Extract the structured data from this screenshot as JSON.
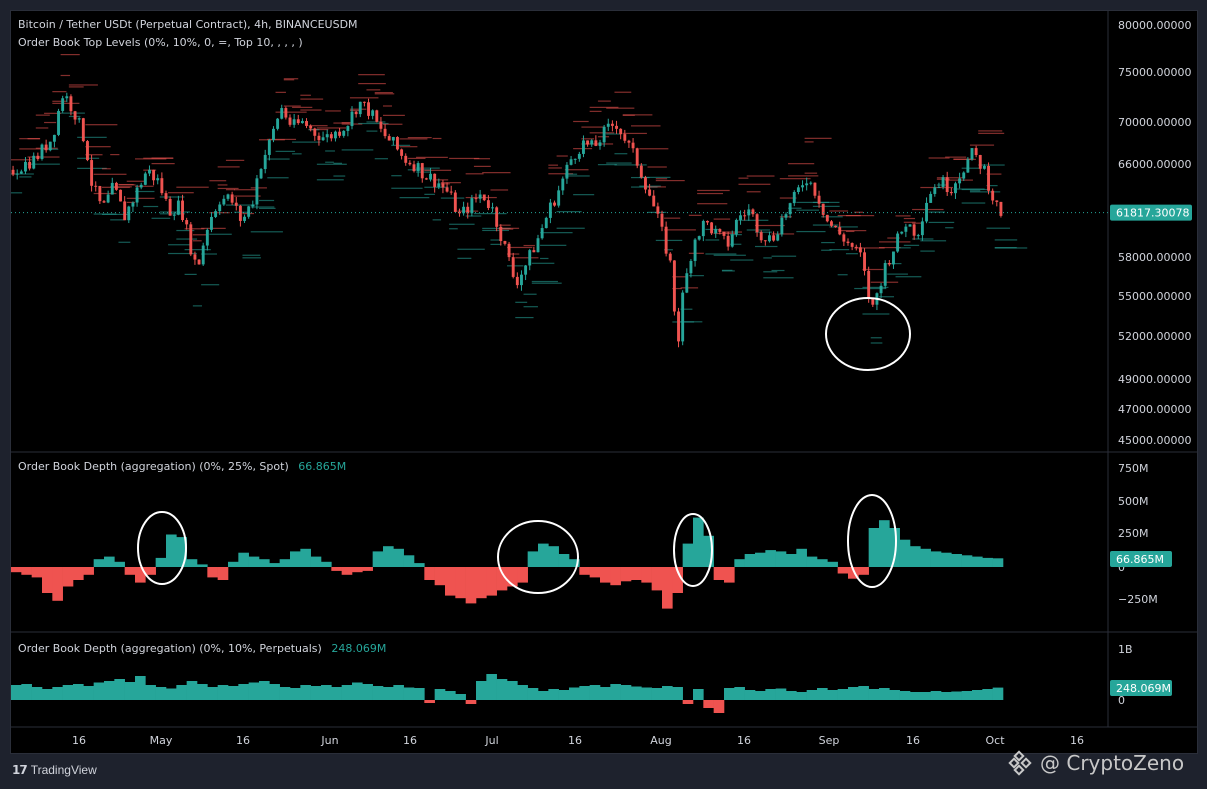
{
  "chart_data": [
    {
      "type": "candlestick",
      "title": "Bitcoin / Tether USDt (Perpetual Contract), 4h, BINANCEUSDM",
      "indicator": "Order Book Top Levels (0%, 10%, 0, =, Top 10, , , , )",
      "y_ticks": [
        "80000.00000",
        "75000.00000",
        "70000.00000",
        "66000.00000",
        "58000.00000",
        "55000.00000",
        "52000.00000",
        "49000.00000",
        "47000.00000",
        "45000.00000"
      ],
      "y_tick_values": [
        80000,
        75000,
        70000,
        66000,
        58000,
        55000,
        52000,
        49000,
        47000,
        45000
      ],
      "last_price_label": "61817.30078",
      "last_price": 61817.3,
      "price_path": [
        [
          0,
          65500
        ],
        [
          4,
          66500
        ],
        [
          7,
          68500
        ],
        [
          9,
          73000
        ],
        [
          11,
          71000
        ],
        [
          13,
          68000
        ],
        [
          14,
          64500
        ],
        [
          16,
          62000
        ],
        [
          18,
          64000
        ],
        [
          20,
          61500
        ],
        [
          22,
          63500
        ],
        [
          24,
          65500
        ],
        [
          26,
          64500
        ],
        [
          28,
          62000
        ],
        [
          30,
          62500
        ],
        [
          32,
          58500
        ],
        [
          33,
          57000
        ],
        [
          35,
          61000
        ],
        [
          37,
          63000
        ],
        [
          39,
          63000
        ],
        [
          41,
          61000
        ],
        [
          43,
          63000
        ],
        [
          44,
          65500
        ],
        [
          46,
          68000
        ],
        [
          48,
          71500
        ],
        [
          50,
          69500
        ],
        [
          52,
          70000
        ],
        [
          54,
          69000
        ],
        [
          56,
          68500
        ],
        [
          58,
          69000
        ],
        [
          60,
          70000
        ],
        [
          62,
          72000
        ],
        [
          64,
          71000
        ],
        [
          66,
          69000
        ],
        [
          68,
          68000
        ],
        [
          70,
          66500
        ],
        [
          72,
          66000
        ],
        [
          74,
          65000
        ],
        [
          76,
          64500
        ],
        [
          78,
          63500
        ],
        [
          80,
          61500
        ],
        [
          82,
          62500
        ],
        [
          84,
          63500
        ],
        [
          86,
          62000
        ],
        [
          88,
          59000
        ],
        [
          90,
          56000
        ],
        [
          92,
          57500
        ],
        [
          94,
          59500
        ],
        [
          96,
          62000
        ],
        [
          98,
          64000
        ],
        [
          100,
          66500
        ],
        [
          102,
          68000
        ],
        [
          104,
          67500
        ],
        [
          106,
          69000
        ],
        [
          108,
          70000
        ],
        [
          110,
          68000
        ],
        [
          112,
          66000
        ],
        [
          114,
          63500
        ],
        [
          116,
          60500
        ],
        [
          118,
          57000
        ],
        [
          119,
          51000
        ],
        [
          120,
          55000
        ],
        [
          122,
          59500
        ],
        [
          124,
          61000
        ],
        [
          126,
          60000
        ],
        [
          128,
          59000
        ],
        [
          130,
          61500
        ],
        [
          132,
          62000
        ],
        [
          134,
          60000
        ],
        [
          136,
          59500
        ],
        [
          138,
          61500
        ],
        [
          140,
          63000
        ],
        [
          142,
          65000
        ],
        [
          144,
          63500
        ],
        [
          146,
          61000
        ],
        [
          148,
          60000
        ],
        [
          150,
          59000
        ],
        [
          152,
          58000
        ],
        [
          153,
          55500
        ],
        [
          154,
          54000
        ],
        [
          156,
          57000
        ],
        [
          158,
          59000
        ],
        [
          160,
          61000
        ],
        [
          162,
          60000
        ],
        [
          164,
          63500
        ],
        [
          166,
          64500
        ],
        [
          168,
          64000
        ],
        [
          170,
          65500
        ],
        [
          172,
          67000
        ],
        [
          174,
          65500
        ],
        [
          176,
          62500
        ],
        [
          177,
          61800
        ]
      ],
      "annotations": [
        "circle around dip near 52000 in early Sep"
      ]
    },
    {
      "type": "area",
      "title": "Order Book Depth (aggregation) (0%, 25%, Spot)",
      "value_label": "66.865M",
      "y_ticks": [
        "750M",
        "500M",
        "250M",
        "0",
        "−250M"
      ],
      "y_tick_values": [
        750,
        500,
        250,
        0,
        -250
      ],
      "unit": "M",
      "values": [
        -40,
        -60,
        -80,
        -200,
        -260,
        -150,
        -100,
        -60,
        60,
        80,
        40,
        -60,
        -120,
        -60,
        70,
        250,
        230,
        60,
        20,
        -80,
        -100,
        40,
        110,
        80,
        60,
        30,
        60,
        120,
        140,
        80,
        40,
        -30,
        -60,
        -40,
        -30,
        120,
        160,
        140,
        90,
        30,
        -100,
        -140,
        -220,
        -240,
        -280,
        -240,
        -220,
        -180,
        -150,
        -120,
        120,
        180,
        160,
        100,
        60,
        -60,
        -80,
        -120,
        -140,
        -110,
        -100,
        -120,
        -180,
        -320,
        -200,
        180,
        380,
        240,
        -100,
        -120,
        60,
        100,
        110,
        130,
        120,
        100,
        140,
        80,
        60,
        40,
        -50,
        -90,
        -60,
        300,
        360,
        300,
        210,
        160,
        140,
        120,
        110,
        100,
        90,
        80,
        70,
        66.865
      ]
    },
    {
      "type": "area",
      "title": "Order Book Depth (aggregation) (0%, 10%, Perpetuals)",
      "value_label": "248.069M",
      "y_ticks": [
        "1B",
        "0"
      ],
      "y_tick_values": [
        1000,
        0
      ],
      "unit": "M",
      "values": [
        300,
        320,
        260,
        220,
        260,
        300,
        320,
        280,
        350,
        380,
        420,
        360,
        480,
        300,
        260,
        230,
        300,
        380,
        320,
        260,
        300,
        280,
        320,
        350,
        380,
        320,
        260,
        240,
        300,
        280,
        300,
        260,
        300,
        350,
        320,
        280,
        260,
        300,
        250,
        240,
        -60,
        220,
        180,
        120,
        -80,
        380,
        520,
        420,
        380,
        300,
        240,
        180,
        220,
        200,
        250,
        280,
        300,
        260,
        320,
        300,
        270,
        250,
        240,
        280,
        260,
        -80,
        220,
        -160,
        -260,
        240,
        260,
        200,
        180,
        220,
        230,
        180,
        160,
        200,
        240,
        200,
        220,
        260,
        280,
        220,
        240,
        200,
        180,
        160,
        160,
        180,
        160,
        170,
        180,
        200,
        220,
        248.069
      ]
    }
  ],
  "x_ticks": [
    "16",
    "May",
    "16",
    "Jun",
    "16",
    "Jul",
    "16",
    "Aug",
    "16",
    "Sep",
    "16",
    "Oct",
    "16"
  ],
  "footer": {
    "brand": "TradingView",
    "watermark": "@ CryptoZeno"
  },
  "colors": {
    "up": "#26a69a",
    "down": "#ef5350",
    "background": "#000000",
    "price_label_bg": "#26a69a"
  }
}
